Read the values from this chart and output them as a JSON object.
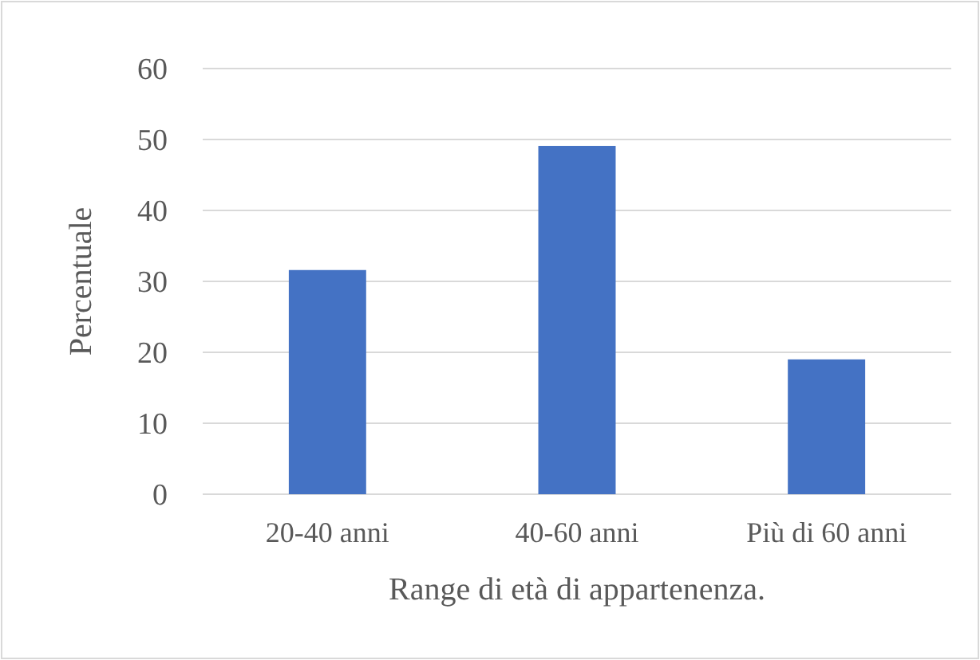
{
  "chart_data": {
    "type": "bar",
    "xlabel": "Range di età di appartenenza.",
    "ylabel": "Percentuale",
    "categories": [
      "20-40 anni",
      "40-60 anni",
      "Più di 60 anni"
    ],
    "values": [
      31.6,
      49.1,
      19.0
    ],
    "color": "#4472c4",
    "ylim": [
      0,
      60
    ],
    "yticks": [
      0,
      10,
      20,
      30,
      40,
      50,
      60
    ],
    "grid": "y"
  }
}
